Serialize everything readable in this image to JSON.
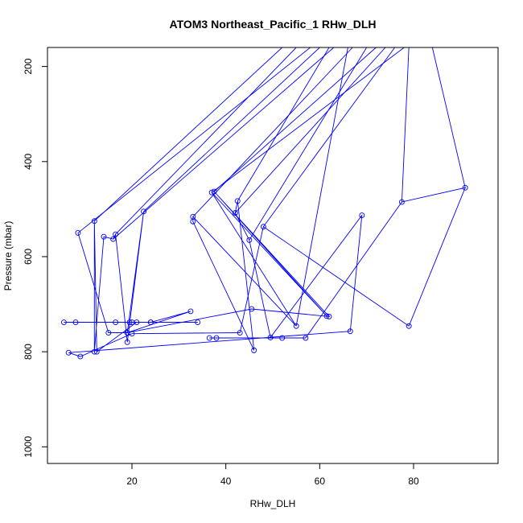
{
  "chart_data": {
    "type": "line",
    "title": "ATOM3 Northeast_Pacific_1 RHw_DLH",
    "xlabel": "RHw_DLH",
    "ylabel": "Pressure (mbar)",
    "xlim": [
      2,
      98
    ],
    "ylim": [
      1035,
      160
    ],
    "y_reversed": true,
    "x_ticks": [
      20,
      40,
      60,
      80
    ],
    "y_ticks": [
      200,
      400,
      600,
      800,
      1000
    ],
    "series_color": "#0000ff",
    "marker": "open-circle",
    "series": [
      {
        "points": [
          [
            8.5,
            550
          ],
          [
            15.0,
            760
          ],
          [
            19.0,
            760
          ],
          [
            32.5,
            715
          ],
          [
            24.0,
            738
          ],
          [
            5.5,
            738
          ],
          [
            8.0,
            738
          ],
          [
            24.0,
            738
          ],
          [
            34.0,
            738
          ],
          [
            20.0,
            738
          ],
          [
            16.5,
            738
          ],
          [
            19.5,
            738
          ],
          [
            21.0,
            738
          ],
          [
            12.5,
            800
          ],
          [
            12.0,
            525
          ],
          [
            12.0,
            800
          ],
          [
            14.0,
            558
          ],
          [
            16.0,
            563
          ],
          [
            16.5,
            553
          ],
          [
            19.0,
            780
          ],
          [
            22.5,
            505
          ],
          [
            19.0,
            760
          ],
          [
            45.5,
            710
          ],
          [
            62.0,
            726
          ],
          [
            37.5,
            463
          ],
          [
            61.5,
            725
          ],
          [
            37.0,
            465
          ],
          [
            55.0,
            746
          ],
          [
            33.0,
            516
          ],
          [
            33.0,
            526
          ],
          [
            46.0,
            797
          ],
          [
            42.5,
            483
          ],
          [
            42.0,
            508
          ],
          [
            45.0,
            565
          ],
          [
            49.5,
            770
          ],
          [
            69.0,
            513
          ],
          [
            66.5,
            757
          ],
          [
            6.5,
            802
          ],
          [
            9.0,
            810
          ],
          [
            20.0,
            762
          ],
          [
            43.0,
            760
          ],
          [
            48.0,
            537
          ],
          [
            79.0,
            746
          ],
          [
            91.0,
            455
          ],
          [
            77.5,
            485
          ],
          [
            57.0,
            771
          ],
          [
            52.0,
            771
          ],
          [
            38.0,
            771
          ],
          [
            36.5,
            771
          ]
        ],
        "offscale_segments": [
          [
            [
              8.5,
              550
            ],
            [
              58,
              160
            ]
          ],
          [
            [
              12.0,
              525
            ],
            [
              52,
              160
            ]
          ],
          [
            [
              16.0,
              563
            ],
            [
              63,
              160
            ]
          ],
          [
            [
              16.5,
              553
            ],
            [
              55,
              160
            ]
          ],
          [
            [
              22.5,
              505
            ],
            [
              60,
              160
            ]
          ],
          [
            [
              37.5,
              463
            ],
            [
              72,
              160
            ]
          ],
          [
            [
              37.0,
              465
            ],
            [
              78,
              160
            ]
          ],
          [
            [
              33.0,
              516
            ],
            [
              67,
              160
            ]
          ],
          [
            [
              42.5,
              483
            ],
            [
              62,
              160
            ]
          ],
          [
            [
              45.0,
              565
            ],
            [
              70,
              160
            ]
          ],
          [
            [
              48.0,
              537
            ],
            [
              76,
              160
            ]
          ],
          [
            [
              77.5,
              485
            ],
            [
              79,
              160
            ]
          ],
          [
            [
              55.0,
              746
            ],
            [
              66,
              160
            ]
          ],
          [
            [
              91.0,
              455
            ],
            [
              84,
              160
            ]
          ],
          [
            [
              42.0,
              508
            ],
            [
              74,
              160
            ]
          ]
        ]
      }
    ]
  }
}
